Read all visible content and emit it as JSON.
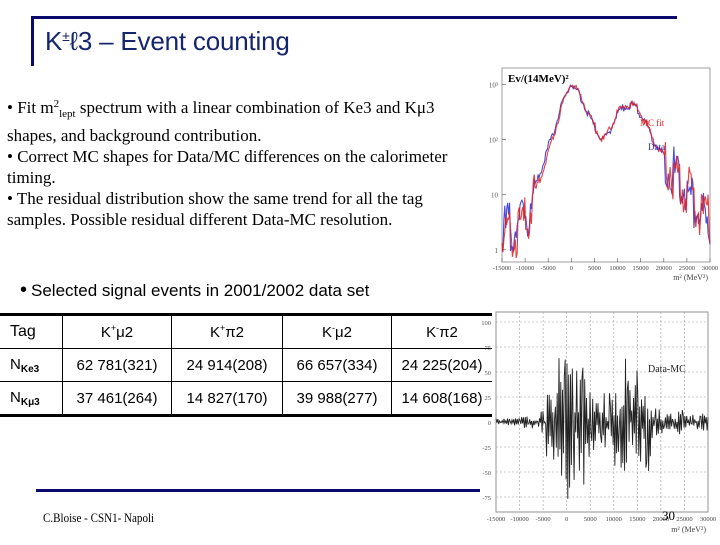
{
  "slide": {
    "title_prefix": "K",
    "title_sup": "±",
    "title_rest": "ℓ3 – Event counting",
    "bullets": [
      {
        "pre": "• Fit m",
        "sup": "2",
        "sub": "lept",
        "post": " spectrum with a linear combination of Ke3 and Kμ3 shapes, and background contribution."
      },
      {
        "text": "• Correct MC shapes for Data/MC differences on the calorimeter timing."
      },
      {
        "text": "• The residual distribution show the same trend for all the tag samples. Possible residual different Data-MC resolution."
      }
    ],
    "bullet2": {
      "dot": "•",
      "text": "Selected signal events in 2001/2002 data set"
    },
    "footer": {
      "author": "C.Bloise - CSN1- Napoli",
      "page": "30"
    }
  },
  "table": {
    "header": {
      "tag": "Tag",
      "cols": [
        {
          "k": "K",
          "sup": "+",
          "rest": "μ2"
        },
        {
          "k": "K",
          "sup": "+",
          "rest": "π2"
        },
        {
          "k": "K",
          "sup": "-",
          "rest": "μ2"
        },
        {
          "k": "K",
          "sup": "-",
          "rest": "π2"
        }
      ]
    },
    "rows": [
      {
        "label": "N",
        "label_sub": "Ke3",
        "values": [
          "62 781(321)",
          "24 914(208)",
          "66 657(334)",
          "24 225(204)"
        ]
      },
      {
        "label": "N",
        "label_sub": "Kμ3",
        "values": [
          "37 461(264)",
          "14 827(170)",
          "39 988(277)",
          "14 608(168)"
        ]
      }
    ]
  },
  "chart_data": [
    {
      "type": "line",
      "title": "Ev/(14MeV)²",
      "xlabel": "m² (MeV²)",
      "ylabel": "Ev/(14MeV)²",
      "yscale": "log",
      "xlim": [
        -15000,
        30000
      ],
      "ylim": [
        0.6,
        2000
      ],
      "x_ticks": [
        "-15000",
        "-10000",
        "-5000",
        "0",
        "5000",
        "10000",
        "15000",
        "20000",
        "25000",
        "30000"
      ],
      "y_ticks": [
        "1",
        "10",
        "10²",
        "10³"
      ],
      "legend": [
        "MC fit",
        "Data"
      ],
      "series": [
        {
          "name": "Data",
          "color": "#2a2ad0",
          "x": [
            -15000,
            -12000,
            -10000,
            -8000,
            -6000,
            -4000,
            -2000,
            0,
            2000,
            4000,
            6000,
            7000,
            8000,
            10000,
            12000,
            14000,
            16000,
            18000,
            20000,
            22000,
            24000,
            26000,
            28000,
            30000
          ],
          "y": [
            2,
            3,
            4,
            12,
            40,
            130,
            450,
            1100,
            600,
            250,
            120,
            100,
            130,
            300,
            430,
            400,
            200,
            90,
            50,
            25,
            15,
            8,
            5,
            2
          ]
        },
        {
          "name": "MC fit",
          "color": "#e02020",
          "x": [
            -15000,
            -12000,
            -10000,
            -8000,
            -6000,
            -4000,
            -2000,
            0,
            2000,
            4000,
            6000,
            7000,
            8000,
            10000,
            12000,
            14000,
            16000,
            18000,
            20000,
            22000,
            24000,
            26000,
            28000,
            30000
          ],
          "y": [
            1.5,
            2,
            3,
            10,
            30,
            100,
            420,
            1100,
            620,
            260,
            125,
            100,
            135,
            310,
            440,
            410,
            210,
            95,
            50,
            26,
            16,
            9,
            5,
            3
          ]
        }
      ]
    },
    {
      "type": "bar",
      "title": "Data-MC",
      "xlabel": "m² (MeV²)",
      "ylabel": "",
      "xlim": [
        -15000,
        30000
      ],
      "ylim": [
        -90,
        110
      ],
      "grid": true,
      "x_ticks": [
        "-15000",
        "-10000",
        "-5000",
        "0",
        "5000",
        "10000",
        "15000",
        "20000",
        "25000",
        "30000"
      ],
      "y_ticks": [
        "-75",
        "-50",
        "-25",
        "0",
        "25",
        "50",
        "75",
        "100"
      ],
      "series": [
        {
          "name": "Data-MC",
          "color": "#222222",
          "x": [
            -15000,
            -10000,
            -6000,
            -5000,
            -3000,
            -2000,
            -1000,
            0,
            1000,
            2000,
            4000,
            6000,
            8000,
            10000,
            11000,
            12000,
            13000,
            14000,
            15000,
            16000,
            18000,
            20000,
            25000,
            30000
          ],
          "y": [
            0,
            3,
            8,
            48,
            -40,
            70,
            -75,
            82,
            -65,
            75,
            -35,
            30,
            -30,
            50,
            -55,
            -80,
            82,
            -60,
            42,
            55,
            -20,
            10,
            5,
            5
          ]
        }
      ]
    }
  ]
}
